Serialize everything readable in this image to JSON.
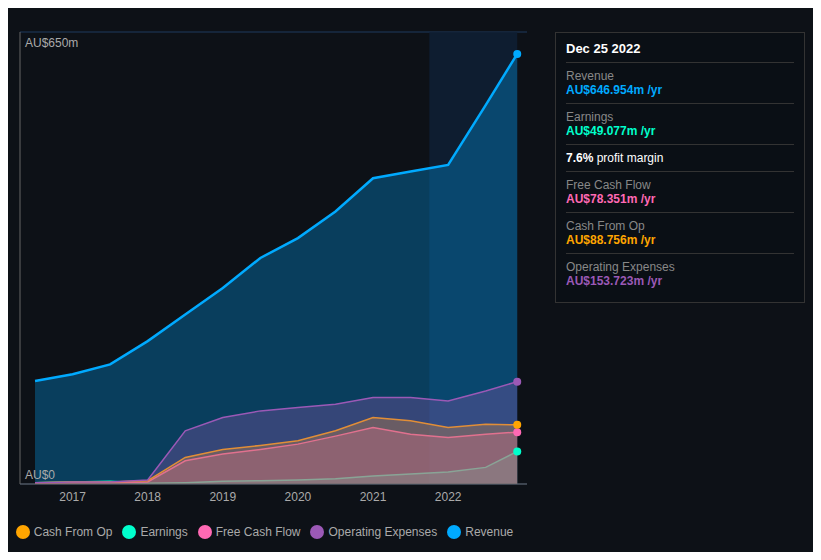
{
  "chart_data": {
    "type": "area",
    "x": [
      2016.5,
      2017,
      2017.5,
      2018,
      2018.5,
      2019,
      2019.5,
      2020,
      2020.5,
      2021,
      2021.5,
      2022,
      2022.5,
      2022.92
    ],
    "series": [
      {
        "name": "Revenue",
        "color": "#00aaff",
        "values": [
          155,
          165,
          180,
          215,
          255,
          295,
          340,
          370,
          410,
          460,
          470,
          480,
          570,
          647
        ]
      },
      {
        "name": "Earnings",
        "color": "#00ffcc",
        "values": [
          2,
          3,
          4,
          1,
          2,
          4,
          5,
          6,
          8,
          12,
          15,
          18,
          25,
          49
        ]
      },
      {
        "name": "Free Cash Flow",
        "color": "#ff69b4",
        "values": [
          1,
          2,
          2,
          3,
          35,
          45,
          52,
          60,
          72,
          85,
          75,
          70,
          75,
          78
        ]
      },
      {
        "name": "Cash From Op",
        "color": "#ffa500",
        "values": [
          2,
          3,
          3,
          5,
          40,
          52,
          58,
          65,
          80,
          100,
          95,
          85,
          90,
          89
        ]
      },
      {
        "name": "Operating Expenses",
        "color": "#9b59b6",
        "values": [
          2,
          3,
          3,
          6,
          80,
          100,
          110,
          115,
          120,
          130,
          130,
          125,
          140,
          154
        ]
      }
    ],
    "xlim": [
      2016.3,
      2023.05
    ],
    "xticks": [
      2017,
      2018,
      2019,
      2020,
      2021,
      2022
    ],
    "ylim": [
      0,
      680
    ],
    "yticks": [
      0,
      162.5,
      325,
      487.5,
      650
    ],
    "grid": true,
    "tick_labels": "x",
    "legend": "bottom",
    "annotations": [
      "AU$0",
      "AU$650m"
    ],
    "shaded_x": [
      2021.75,
      2022.92
    ],
    "tooltip": {
      "title": "Dec 25 2022",
      "rows": [
        {
          "label": "Revenue",
          "value": "AU$646.954m /yr",
          "color": "#00aaff"
        },
        {
          "label": "Earnings",
          "value": "AU$49.077m /yr",
          "color": "#00ffcc"
        },
        {
          "value": "7.6% profit margin",
          "color": "#ffffff"
        },
        {
          "label": "Free Cash Flow",
          "value": "AU$78.351m /yr",
          "color": "#ff69b4"
        },
        {
          "label": "Cash From Op",
          "value": "AU$88.756m /yr",
          "color": "#ffa500"
        },
        {
          "label": "Operating Expenses",
          "value": "AU$153.723m /yr",
          "color": "#9b59b6"
        }
      ]
    }
  }
}
